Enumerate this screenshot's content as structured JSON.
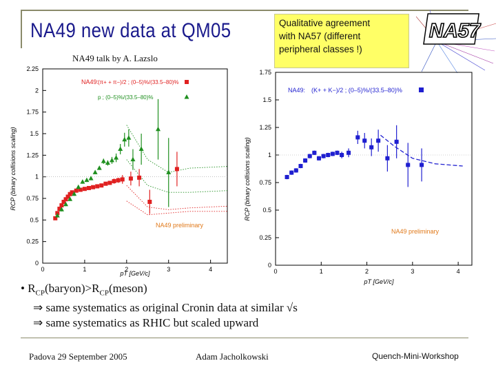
{
  "slide": {
    "title": "NA49 new data at QM05",
    "subtitle": "NA49 talk by A. Lazslo",
    "callout": {
      "line1": "Qualitative agreement",
      "line2": "with NA57 (different",
      "line3": "peripheral classes !)"
    },
    "logo_text": "NA57"
  },
  "bullets": {
    "b1_pre": "• R",
    "b1_sub1": "CP",
    "b1_mid": "(baryon)>R",
    "b1_sub2": "CP",
    "b1_post": "(meson)",
    "b2": "⇒ same systematics as original Cronin data at similar √s",
    "b3": "⇒ same systematics as RHIC but scaled upward"
  },
  "footer": {
    "left": "Padova 29 September 2005",
    "center": "Adam Jacholkowski",
    "right": "Quench-Mini-Workshop"
  },
  "colors": {
    "title": "#1a1a8c",
    "red": "#e02020",
    "green": "#1f8f1f",
    "blue": "#1f1fd0",
    "orange": "#e07818",
    "callout": "#ffff66"
  },
  "chart_data": [
    {
      "type": "scatter",
      "xlabel": "pT [GeV/c]",
      "ylabel": "RCP (binary collisions scaling)",
      "xlim": [
        0,
        4.4
      ],
      "ylim": [
        0,
        2.25
      ],
      "xticks": [
        "0",
        "1",
        "2",
        "3",
        "4"
      ],
      "yticks": [
        "0",
        "0.25",
        "0.5",
        "0.75",
        "1",
        "1.25",
        "1.5",
        "1.75",
        "2",
        "2.25"
      ],
      "ytick_values": [
        0,
        0.25,
        0.5,
        0.75,
        1,
        1.25,
        1.5,
        1.75,
        2,
        2.25
      ],
      "legend": {
        "collab": "NA49:",
        "red_label": "(π+ + π−)/2 ; (0–5)%/(33.5–80)%",
        "green_label": "p ; (0–5)%/(33.5–80)%"
      },
      "annotation": "NA49 preliminary",
      "series": [
        {
          "name": "pions",
          "color": "red",
          "x": [
            0.3,
            0.35,
            0.4,
            0.45,
            0.5,
            0.55,
            0.6,
            0.65,
            0.7,
            0.8,
            0.9,
            1.0,
            1.1,
            1.2,
            1.3,
            1.4,
            1.5,
            1.6,
            1.7,
            1.8,
            1.9,
            2.1,
            2.3,
            2.55,
            3.2
          ],
          "y": [
            0.52,
            0.58,
            0.63,
            0.67,
            0.71,
            0.74,
            0.77,
            0.8,
            0.82,
            0.84,
            0.85,
            0.86,
            0.87,
            0.88,
            0.89,
            0.9,
            0.92,
            0.93,
            0.95,
            0.96,
            0.97,
            0.98,
            0.99,
            0.71,
            1.09
          ],
          "err": [
            0.02,
            0.02,
            0.02,
            0.02,
            0.02,
            0.02,
            0.02,
            0.02,
            0.02,
            0.02,
            0.02,
            0.02,
            0.02,
            0.02,
            0.02,
            0.02,
            0.02,
            0.02,
            0.03,
            0.03,
            0.05,
            0.08,
            0.1,
            0.14,
            0.2
          ]
        },
        {
          "name": "protons",
          "color": "green",
          "x": [
            0.35,
            0.45,
            0.55,
            0.65,
            0.75,
            0.85,
            0.95,
            1.05,
            1.15,
            1.25,
            1.35,
            1.45,
            1.55,
            1.65,
            1.75,
            1.85,
            1.95,
            2.05,
            2.15,
            2.35,
            2.75,
            3.0
          ],
          "y": [
            0.55,
            0.62,
            0.68,
            0.74,
            0.8,
            0.88,
            0.94,
            0.96,
            0.98,
            1.05,
            1.1,
            1.18,
            1.16,
            1.19,
            1.22,
            1.32,
            1.43,
            1.45,
            1.2,
            1.32,
            1.55,
            1.05
          ],
          "err": [
            0.02,
            0.02,
            0.02,
            0.02,
            0.02,
            0.02,
            0.02,
            0.02,
            0.02,
            0.02,
            0.02,
            0.03,
            0.03,
            0.04,
            0.05,
            0.06,
            0.08,
            0.1,
            0.12,
            0.18,
            0.35,
            0.4
          ]
        }
      ]
    },
    {
      "type": "scatter",
      "xlabel": "pT [GeV/c]",
      "ylabel": "RCP (binary collisions scaling)",
      "xlim": [
        0,
        4.3
      ],
      "ylim": [
        0,
        1.75
      ],
      "xticks": [
        "0",
        "1",
        "2",
        "3",
        "4"
      ],
      "yticks": [
        "0",
        "0.25",
        "0.5",
        "0.75",
        "1",
        "1.25",
        "1.5",
        "1.75"
      ],
      "ytick_values": [
        0,
        0.25,
        0.5,
        0.75,
        1,
        1.25,
        1.5,
        1.75
      ],
      "legend": {
        "collab": "NA49:",
        "blue_label": "(K+ + K−)/2 ; (0–5)%/(33.5–80)%"
      },
      "annotation": "NA49 preliminary",
      "series": [
        {
          "name": "kaons",
          "color": "blue",
          "x": [
            0.25,
            0.35,
            0.45,
            0.55,
            0.65,
            0.75,
            0.85,
            0.95,
            1.05,
            1.15,
            1.25,
            1.35,
            1.45,
            1.6,
            1.8,
            1.95,
            2.1,
            2.25,
            2.45,
            2.65,
            2.9,
            3.2
          ],
          "y": [
            0.8,
            0.84,
            0.86,
            0.9,
            0.95,
            0.99,
            1.02,
            0.97,
            0.99,
            1.0,
            1.01,
            1.02,
            1.0,
            1.02,
            1.16,
            1.13,
            1.07,
            1.13,
            0.97,
            1.12,
            0.91,
            0.91
          ],
          "err": [
            0.02,
            0.02,
            0.02,
            0.02,
            0.02,
            0.02,
            0.02,
            0.02,
            0.02,
            0.02,
            0.02,
            0.02,
            0.03,
            0.04,
            0.06,
            0.07,
            0.08,
            0.1,
            0.12,
            0.15,
            0.2,
            0.15
          ]
        }
      ]
    }
  ]
}
